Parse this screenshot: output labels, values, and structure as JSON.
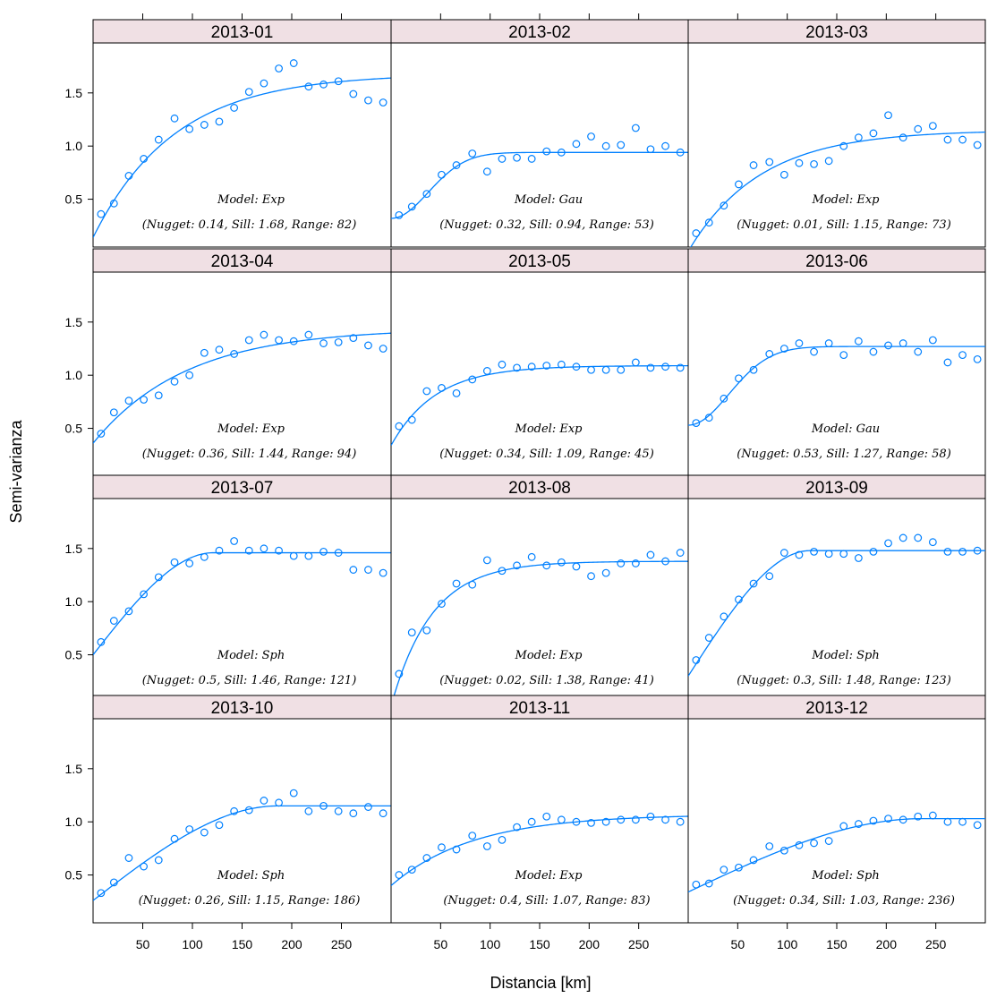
{
  "chart_data": {
    "type": "scatter",
    "xlabel": "Distancia [km]",
    "ylabel": "Semi-varianza",
    "xlim": [
      0,
      300
    ],
    "ylim": [
      0.05,
      1.97
    ],
    "x_ticks": [
      50,
      100,
      150,
      200,
      250
    ],
    "y_ticks": [
      0.5,
      1.0,
      1.5
    ],
    "y_tick_labels": [
      "0.5",
      "1.0",
      "1.5"
    ],
    "point_color": "#0080ff",
    "strip_color": "#f0e0e4",
    "panels": [
      {
        "label": "2013-01",
        "model_line": "Model: Exp",
        "params_line": "(Nugget: 0.14, Sill: 1.68, Range: 82)",
        "model": "Exp",
        "nugget": 0.14,
        "sill": 1.68,
        "range": 82,
        "x": [
          8,
          21,
          36,
          51,
          66,
          82,
          97,
          112,
          127,
          142,
          157,
          172,
          187,
          202,
          217,
          232,
          247,
          262,
          277,
          292
        ],
        "y": [
          0.36,
          0.46,
          0.72,
          0.88,
          1.06,
          1.26,
          1.16,
          1.2,
          1.23,
          1.36,
          1.51,
          1.59,
          1.73,
          1.78,
          1.56,
          1.58,
          1.61,
          1.49,
          1.43,
          1.41
        ]
      },
      {
        "label": "2013-02",
        "model_line": "Model: Gau",
        "params_line": "(Nugget: 0.32, Sill: 0.94, Range: 53)",
        "model": "Gau",
        "nugget": 0.32,
        "sill": 0.94,
        "range": 53,
        "x": [
          8,
          21,
          36,
          51,
          66,
          82,
          97,
          112,
          127,
          142,
          157,
          172,
          187,
          202,
          217,
          232,
          247,
          262,
          277,
          292
        ],
        "y": [
          0.35,
          0.43,
          0.55,
          0.73,
          0.82,
          0.93,
          0.76,
          0.88,
          0.89,
          0.88,
          0.95,
          0.94,
          1.02,
          1.09,
          1.0,
          1.01,
          1.17,
          0.97,
          1.0,
          0.94
        ]
      },
      {
        "label": "2013-03",
        "model_line": "Model: Exp",
        "params_line": "(Nugget: 0.01, Sill: 1.15, Range: 73)",
        "model": "Exp",
        "nugget": 0.01,
        "sill": 1.15,
        "range": 73,
        "x": [
          8,
          21,
          36,
          51,
          66,
          82,
          97,
          112,
          127,
          142,
          157,
          172,
          187,
          202,
          217,
          232,
          247,
          262,
          277,
          292
        ],
        "y": [
          0.18,
          0.28,
          0.44,
          0.64,
          0.82,
          0.85,
          0.73,
          0.84,
          0.83,
          0.86,
          1.0,
          1.08,
          1.12,
          1.29,
          1.08,
          1.16,
          1.19,
          1.06,
          1.06,
          1.01
        ]
      },
      {
        "label": "2013-04",
        "model_line": "Model: Exp",
        "params_line": "(Nugget: 0.36, Sill: 1.44, Range: 94)",
        "model": "Exp",
        "nugget": 0.36,
        "sill": 1.44,
        "range": 94,
        "x": [
          8,
          21,
          36,
          51,
          66,
          82,
          97,
          112,
          127,
          142,
          157,
          172,
          187,
          202,
          217,
          232,
          247,
          262,
          277,
          292
        ],
        "y": [
          0.45,
          0.65,
          0.76,
          0.77,
          0.81,
          0.94,
          1.0,
          1.21,
          1.24,
          1.2,
          1.33,
          1.38,
          1.33,
          1.32,
          1.38,
          1.3,
          1.31,
          1.35,
          1.28,
          1.25
        ]
      },
      {
        "label": "2013-05",
        "model_line": "Model: Exp",
        "params_line": "(Nugget: 0.34, Sill: 1.09, Range: 45)",
        "model": "Exp",
        "nugget": 0.34,
        "sill": 1.09,
        "range": 45,
        "x": [
          8,
          21,
          36,
          51,
          66,
          82,
          97,
          112,
          127,
          142,
          157,
          172,
          187,
          202,
          217,
          232,
          247,
          262,
          277,
          292
        ],
        "y": [
          0.52,
          0.58,
          0.85,
          0.88,
          0.83,
          0.96,
          1.04,
          1.1,
          1.07,
          1.08,
          1.09,
          1.1,
          1.08,
          1.05,
          1.05,
          1.05,
          1.12,
          1.07,
          1.08,
          1.07
        ]
      },
      {
        "label": "2013-06",
        "model_line": "Model: Gau",
        "params_line": "(Nugget: 0.53, Sill: 1.27, Range: 58)",
        "model": "Gau",
        "nugget": 0.53,
        "sill": 1.27,
        "range": 58,
        "x": [
          8,
          21,
          36,
          51,
          66,
          82,
          97,
          112,
          127,
          142,
          157,
          172,
          187,
          202,
          217,
          232,
          247,
          262,
          277,
          292
        ],
        "y": [
          0.55,
          0.6,
          0.78,
          0.97,
          1.05,
          1.2,
          1.25,
          1.3,
          1.22,
          1.3,
          1.19,
          1.32,
          1.22,
          1.28,
          1.3,
          1.22,
          1.33,
          1.12,
          1.19,
          1.15
        ]
      },
      {
        "label": "2013-07",
        "model_line": "Model: Sph",
        "params_line": "(Nugget: 0.5, Sill: 1.46, Range: 121)",
        "model": "Sph",
        "nugget": 0.5,
        "sill": 1.46,
        "range": 121,
        "x": [
          8,
          21,
          36,
          51,
          66,
          82,
          97,
          112,
          127,
          142,
          157,
          172,
          187,
          202,
          217,
          232,
          247,
          262,
          277,
          292
        ],
        "y": [
          0.62,
          0.82,
          0.91,
          1.07,
          1.23,
          1.37,
          1.36,
          1.42,
          1.48,
          1.57,
          1.48,
          1.5,
          1.48,
          1.43,
          1.43,
          1.47,
          1.46,
          1.3,
          1.3,
          1.27
        ]
      },
      {
        "label": "2013-08",
        "model_line": "Model: Exp",
        "params_line": "(Nugget: 0.02, Sill: 1.38, Range: 41)",
        "model": "Exp",
        "nugget": 0.02,
        "sill": 1.38,
        "range": 41,
        "x": [
          8,
          21,
          36,
          51,
          66,
          82,
          97,
          112,
          127,
          142,
          157,
          172,
          187,
          202,
          217,
          232,
          247,
          262,
          277,
          292
        ],
        "y": [
          0.32,
          0.71,
          0.73,
          0.98,
          1.17,
          1.16,
          1.39,
          1.29,
          1.34,
          1.42,
          1.34,
          1.37,
          1.33,
          1.24,
          1.27,
          1.36,
          1.36,
          1.44,
          1.38,
          1.46
        ]
      },
      {
        "label": "2013-09",
        "model_line": "Model: Sph",
        "params_line": "(Nugget: 0.3, Sill: 1.48, Range: 123)",
        "model": "Sph",
        "nugget": 0.3,
        "sill": 1.48,
        "range": 123,
        "x": [
          8,
          21,
          36,
          51,
          66,
          82,
          97,
          112,
          127,
          142,
          157,
          172,
          187,
          202,
          217,
          232,
          247,
          262,
          277,
          292
        ],
        "y": [
          0.45,
          0.66,
          0.86,
          1.02,
          1.17,
          1.24,
          1.46,
          1.44,
          1.47,
          1.45,
          1.45,
          1.41,
          1.47,
          1.55,
          1.6,
          1.6,
          1.56,
          1.47,
          1.47,
          1.48
        ]
      },
      {
        "label": "2013-10",
        "model_line": "Model: Sph",
        "params_line": "(Nugget: 0.26, Sill: 1.15, Range: 186)",
        "model": "Sph",
        "nugget": 0.26,
        "sill": 1.15,
        "range": 186,
        "x": [
          8,
          21,
          36,
          51,
          66,
          82,
          97,
          112,
          127,
          142,
          157,
          172,
          187,
          202,
          217,
          232,
          247,
          262,
          277,
          292
        ],
        "y": [
          0.33,
          0.43,
          0.66,
          0.58,
          0.64,
          0.84,
          0.93,
          0.9,
          0.97,
          1.1,
          1.11,
          1.2,
          1.18,
          1.27,
          1.1,
          1.15,
          1.1,
          1.08,
          1.14,
          1.08
        ]
      },
      {
        "label": "2013-11",
        "model_line": "Model: Exp",
        "params_line": "(Nugget: 0.4, Sill: 1.07, Range: 83)",
        "model": "Exp",
        "nugget": 0.4,
        "sill": 1.07,
        "range": 83,
        "x": [
          8,
          21,
          36,
          51,
          66,
          82,
          97,
          112,
          127,
          142,
          157,
          172,
          187,
          202,
          217,
          232,
          247,
          262,
          277,
          292
        ],
        "y": [
          0.5,
          0.55,
          0.66,
          0.76,
          0.74,
          0.87,
          0.77,
          0.83,
          0.95,
          1.0,
          1.05,
          1.02,
          1.0,
          0.99,
          1.0,
          1.02,
          1.02,
          1.05,
          1.02,
          1.0
        ]
      },
      {
        "label": "2013-12",
        "model_line": "Model: Sph",
        "params_line": "(Nugget: 0.34, Sill: 1.03, Range: 236)",
        "model": "Sph",
        "nugget": 0.34,
        "sill": 1.03,
        "range": 236,
        "x": [
          8,
          21,
          36,
          51,
          66,
          82,
          97,
          112,
          127,
          142,
          157,
          172,
          187,
          202,
          217,
          232,
          247,
          262,
          277,
          292
        ],
        "y": [
          0.41,
          0.42,
          0.55,
          0.57,
          0.64,
          0.77,
          0.73,
          0.78,
          0.8,
          0.82,
          0.96,
          0.98,
          1.01,
          1.03,
          1.02,
          1.05,
          1.06,
          1.0,
          1.0,
          0.97
        ]
      }
    ]
  }
}
